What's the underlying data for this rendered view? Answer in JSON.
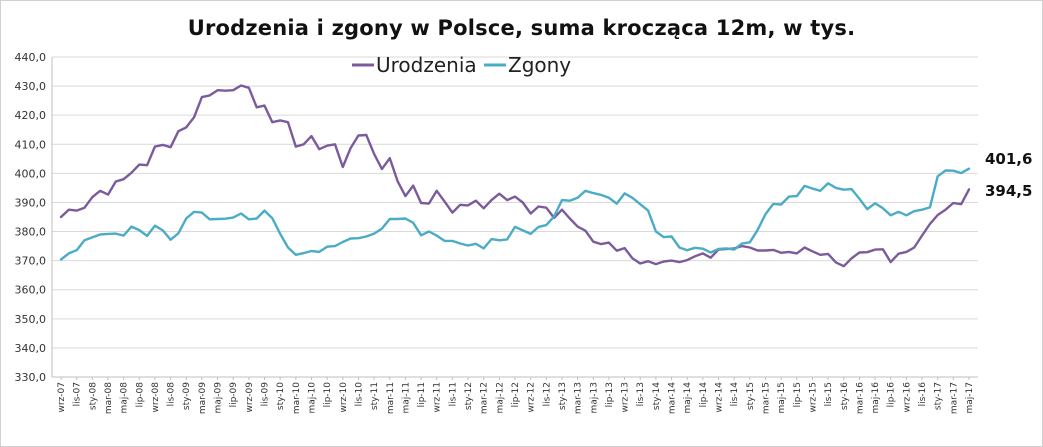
{
  "chart_data": {
    "type": "line",
    "title": "Urodzenia i zgony w Polsce, suma krocząca 12m, w tys.",
    "xlabel": "",
    "ylabel": "",
    "ylim": [
      330,
      440
    ],
    "y_ticks": [
      "330,0",
      "340,0",
      "350,0",
      "360,0",
      "370,0",
      "380,0",
      "390,0",
      "400,0",
      "410,0",
      "420,0",
      "430,0",
      "440,0"
    ],
    "y_tick_values": [
      330,
      340,
      350,
      360,
      370,
      380,
      390,
      400,
      410,
      420,
      430,
      440
    ],
    "grid": true,
    "legend_position": "top",
    "x_tick_labels": [
      "wrz-07",
      "lis-07",
      "sty-08",
      "mar-08",
      "maj-08",
      "lip-08",
      "wrz-08",
      "lis-08",
      "sty-09",
      "mar-09",
      "maj-09",
      "lip-09",
      "wrz-09",
      "lis-09",
      "sty-10",
      "mar-10",
      "maj-10",
      "lip-10",
      "wrz-10",
      "lis-10",
      "sty-11",
      "mar-11",
      "maj-11",
      "lip-11",
      "wrz-11",
      "lis-11",
      "sty-12",
      "mar-12",
      "maj-12",
      "lip-12",
      "wrz-12",
      "lis-12",
      "sty-13",
      "mar-13",
      "maj-13",
      "lip-13",
      "wrz-13",
      "lis-13",
      "sty-14",
      "mar-14",
      "maj-14",
      "lip-14",
      "wrz-14",
      "lis-14",
      "sty-15",
      "mar-15",
      "maj-15",
      "lip-15",
      "wrz-15",
      "lis-15",
      "sty-16",
      "mar-16",
      "maj-16",
      "lip-16",
      "wrz-16",
      "lis-16",
      "sty-17",
      "mar-17",
      "maj-17"
    ],
    "series": [
      {
        "name": "Urodzenia",
        "color": "#7b5b9b",
        "values": [
          385.0,
          387.5,
          387.2,
          388.2,
          391.8,
          394.0,
          392.7,
          397.2,
          398.0,
          400.2,
          403.0,
          402.8,
          409.2,
          409.8,
          409.0,
          414.5,
          415.8,
          419.3,
          426.2,
          426.8,
          428.6,
          428.4,
          428.6,
          430.2,
          429.4,
          422.7,
          423.3,
          417.6,
          418.2,
          417.6,
          409.2,
          410.0,
          412.8,
          408.3,
          409.5,
          410.0,
          402.2,
          408.7,
          413.0,
          413.2,
          406.7,
          401.5,
          405.2,
          397.3,
          392.2,
          395.8,
          389.8,
          389.6,
          394.0,
          390.3,
          386.5,
          389.2,
          389.0,
          390.6,
          388.0,
          390.8,
          393.0,
          390.8,
          392.0,
          390.0,
          386.2,
          388.6,
          388.2,
          384.7,
          387.5,
          384.5,
          381.7,
          380.3,
          376.5,
          375.7,
          376.2,
          373.4,
          374.3,
          370.8,
          369.0,
          369.8,
          368.8,
          369.7,
          370.0,
          369.5,
          370.2,
          371.5,
          372.5,
          371.0,
          373.8,
          374.0,
          374.2,
          375.0,
          374.5,
          373.5,
          373.5,
          373.7,
          372.7,
          373.0,
          372.5,
          374.5,
          373.2,
          372.0,
          372.3,
          369.4,
          368.1,
          370.8,
          372.8,
          372.9,
          373.8,
          373.9,
          369.5,
          372.4,
          373.0,
          374.5,
          378.6,
          382.6,
          385.7,
          387.5,
          389.8,
          389.4,
          394.5
        ]
      },
      {
        "name": "Zgony",
        "color": "#4aacc5",
        "values": [
          370.4,
          372.5,
          373.6,
          377.0,
          378.0,
          379.0,
          379.2,
          379.3,
          378.6,
          381.7,
          380.5,
          378.5,
          382.0,
          380.4,
          377.2,
          379.4,
          384.5,
          386.8,
          386.5,
          384.2,
          384.3,
          384.4,
          384.8,
          386.2,
          384.2,
          384.5,
          387.2,
          384.6,
          379.2,
          374.5,
          372.0,
          372.6,
          373.3,
          373.0,
          374.8,
          375.0,
          376.4,
          377.6,
          377.7,
          378.3,
          379.3,
          381.0,
          384.3,
          384.3,
          384.5,
          383.0,
          378.7,
          380.0,
          378.6,
          376.8,
          376.8,
          375.9,
          375.2,
          375.8,
          374.2,
          377.4,
          377.0,
          377.3,
          381.6,
          380.4,
          379.2,
          381.6,
          382.2,
          385.2,
          390.8,
          390.6,
          391.6,
          394.0,
          393.2,
          392.6,
          391.6,
          389.6,
          393.1,
          391.6,
          389.4,
          387.2,
          380.0,
          378.1,
          378.3,
          374.5,
          373.6,
          374.4,
          374.1,
          372.8,
          374.0,
          374.2,
          373.8,
          375.9,
          376.3,
          380.6,
          386.0,
          389.5,
          389.3,
          392.0,
          392.2,
          395.7,
          394.8,
          394.0,
          396.6,
          395.0,
          394.4,
          394.6,
          391.3,
          387.7,
          389.7,
          388.0,
          385.6,
          386.8,
          385.6,
          387.0,
          387.5,
          388.3,
          399.0,
          401.0,
          400.9,
          400.1,
          401.6
        ]
      }
    ],
    "annotations": [
      "401,6",
      "394,5"
    ]
  }
}
